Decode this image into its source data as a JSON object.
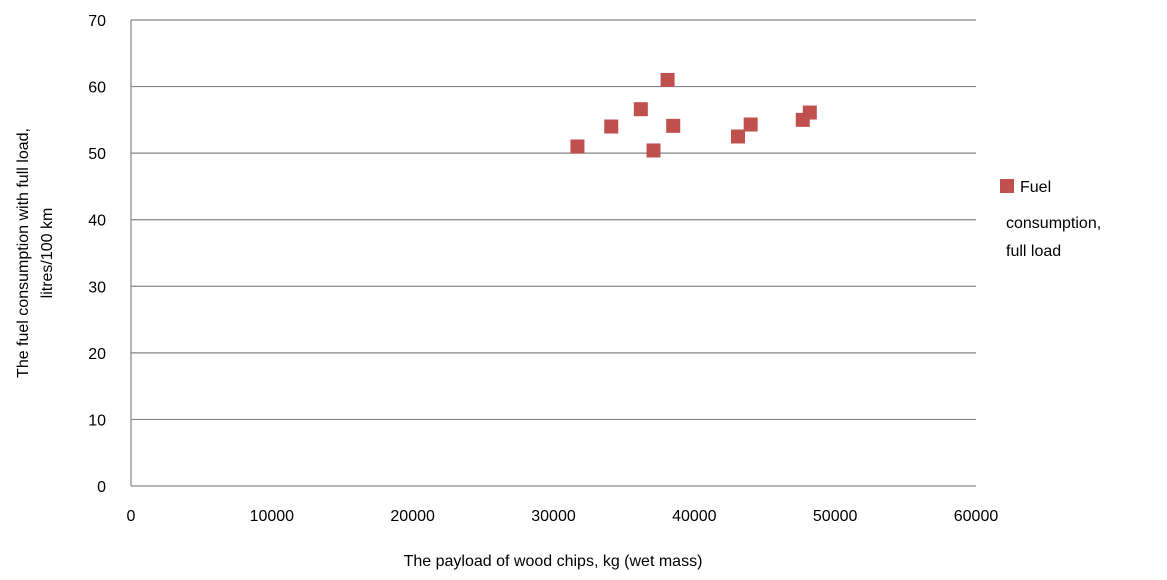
{
  "chart_data": {
    "type": "scatter",
    "title": "",
    "xlabel": "The payload of  wood chips, kg (wet mass)",
    "ylabel_lines": [
      "The fuel consumption with full load,",
      "litres/100 km"
    ],
    "xlim": [
      0,
      60000
    ],
    "ylim": [
      0,
      70
    ],
    "xticks": [
      0,
      10000,
      20000,
      30000,
      40000,
      50000,
      60000
    ],
    "yticks": [
      0,
      10,
      20,
      30,
      40,
      50,
      60,
      70
    ],
    "grid": "horizontal",
    "legend_position": "right",
    "series": [
      {
        "name_lines": [
          "Fuel",
          "consumption,",
          "full load"
        ],
        "color": "#c0504d",
        "marker": "square",
        "points": [
          {
            "x": 31700,
            "y": 51.0
          },
          {
            "x": 34100,
            "y": 54.0
          },
          {
            "x": 36200,
            "y": 56.6
          },
          {
            "x": 37100,
            "y": 50.4
          },
          {
            "x": 38100,
            "y": 61.0
          },
          {
            "x": 38500,
            "y": 54.1
          },
          {
            "x": 43100,
            "y": 52.5
          },
          {
            "x": 44000,
            "y": 54.3
          },
          {
            "x": 47700,
            "y": 55.0
          },
          {
            "x": 48200,
            "y": 56.1
          }
        ]
      }
    ]
  }
}
